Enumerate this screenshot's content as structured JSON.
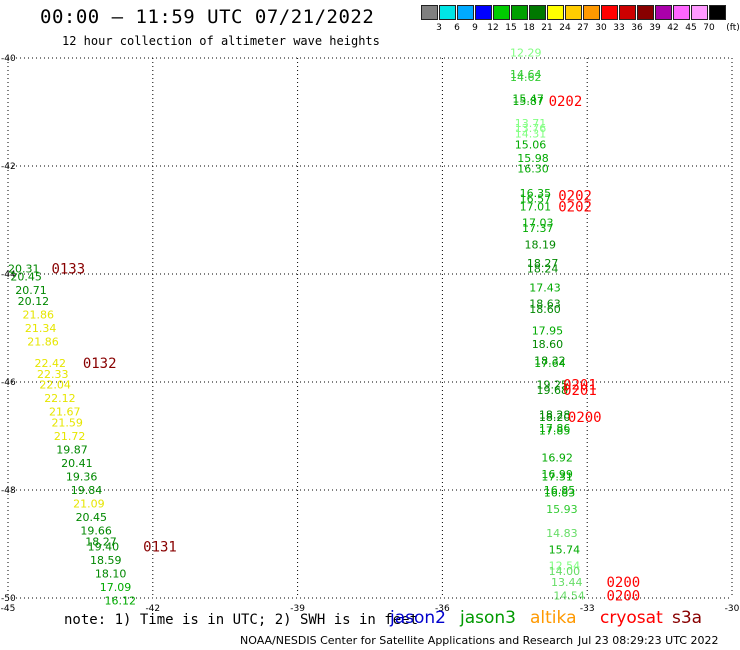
{
  "header": {
    "title": "00:00 – 11:59 UTC 07/21/2022",
    "subtitle": "12 hour collection of altimeter wave heights"
  },
  "color_scale": {
    "swatches": [
      "#808080",
      "#00e5e5",
      "#00aaff",
      "#0000ff",
      "#00cc00",
      "#00a000",
      "#007800",
      "#ffff00",
      "#ffcc00",
      "#ff9900",
      "#ff0000",
      "#cc0000",
      "#880000",
      "#aa00aa",
      "#ff66ff",
      "#ff99ff",
      "#000000"
    ],
    "labels": [
      "3",
      "6",
      "9",
      "12",
      "15",
      "18",
      "21",
      "24",
      "27",
      "30",
      "33",
      "36",
      "39",
      "42",
      "45",
      "70",
      "(ft)"
    ]
  },
  "map": {
    "lon_labels": [
      "-45",
      "-42",
      "-39",
      "-36",
      "-33",
      "-30"
    ],
    "lat_labels": [
      "-40",
      "-42",
      "-44",
      "-46",
      "-48",
      "-50"
    ],
    "obs": [
      {
        "v": "12.29",
        "c": "#80ff80",
        "lon": -34.6,
        "lat": -39.9
      },
      {
        "v": "14.64",
        "c": "#33cc33",
        "lon": -34.6,
        "lat": -40.3
      },
      {
        "v": "14.62",
        "c": "#33cc33",
        "lon": -34.6,
        "lat": -40.35
      },
      {
        "v": "15.47",
        "c": "#00aa00",
        "lon": -34.55,
        "lat": -40.75
      },
      {
        "v": "15.87",
        "c": "#00aa00",
        "lon": -34.55,
        "lat": -40.8
      },
      {
        "v": "13.71",
        "c": "#80ff80",
        "lon": -34.5,
        "lat": -41.2
      },
      {
        "v": "13.76",
        "c": "#80ff80",
        "lon": -34.5,
        "lat": -41.3
      },
      {
        "v": "14.31",
        "c": "#80ff80",
        "lon": -34.5,
        "lat": -41.4
      },
      {
        "v": "15.06",
        "c": "#00aa00",
        "lon": -34.5,
        "lat": -41.6
      },
      {
        "v": "15.98",
        "c": "#00aa00",
        "lon": -34.45,
        "lat": -41.85
      },
      {
        "v": "16.30",
        "c": "#00aa00",
        "lon": -34.45,
        "lat": -42.05
      },
      {
        "v": "16.35",
        "c": "#00aa00",
        "lon": -34.4,
        "lat": -42.5
      },
      {
        "v": "16.57",
        "c": "#00aa00",
        "lon": -34.4,
        "lat": -42.6
      },
      {
        "v": "17.01",
        "c": "#00aa00",
        "lon": -34.4,
        "lat": -42.75
      },
      {
        "v": "17.03",
        "c": "#00aa00",
        "lon": -34.35,
        "lat": -43.05
      },
      {
        "v": "17.37",
        "c": "#00aa00",
        "lon": -34.35,
        "lat": -43.15
      },
      {
        "v": "18.19",
        "c": "#008800",
        "lon": -34.3,
        "lat": -43.45
      },
      {
        "v": "18.27",
        "c": "#008800",
        "lon": -34.25,
        "lat": -43.8
      },
      {
        "v": "18.24",
        "c": "#008800",
        "lon": -34.25,
        "lat": -43.9
      },
      {
        "v": "17.43",
        "c": "#00aa00",
        "lon": -34.2,
        "lat": -44.25
      },
      {
        "v": "18.63",
        "c": "#008800",
        "lon": -34.2,
        "lat": -44.55
      },
      {
        "v": "18.60",
        "c": "#008800",
        "lon": -34.2,
        "lat": -44.65
      },
      {
        "v": "17.95",
        "c": "#00aa00",
        "lon": -34.15,
        "lat": -45.05
      },
      {
        "v": "18.60",
        "c": "#008800",
        "lon": -34.15,
        "lat": -45.3
      },
      {
        "v": "18.32",
        "c": "#008800",
        "lon": -34.1,
        "lat": -45.6
      },
      {
        "v": "17.64",
        "c": "#00aa00",
        "lon": -34.1,
        "lat": -45.65
      },
      {
        "v": "19.25",
        "c": "#008800",
        "lon": -34.05,
        "lat": -46.05
      },
      {
        "v": "19.68",
        "c": "#008800",
        "lon": -34.05,
        "lat": -46.15
      },
      {
        "v": "18.28",
        "c": "#008800",
        "lon": -34.0,
        "lat": -46.6
      },
      {
        "v": "18.20",
        "c": "#008800",
        "lon": -34.0,
        "lat": -46.65
      },
      {
        "v": "17.86",
        "c": "#00aa00",
        "lon": -34.0,
        "lat": -46.85
      },
      {
        "v": "17.85",
        "c": "#00aa00",
        "lon": -34.0,
        "lat": -46.9
      },
      {
        "v": "16.92",
        "c": "#00aa00",
        "lon": -33.95,
        "lat": -47.4
      },
      {
        "v": "16.99",
        "c": "#00aa00",
        "lon": -33.95,
        "lat": -47.7
      },
      {
        "v": "17.31",
        "c": "#00aa00",
        "lon": -33.95,
        "lat": -47.75
      },
      {
        "v": "16.85",
        "c": "#00aa00",
        "lon": -33.9,
        "lat": -48.0
      },
      {
        "v": "16.83",
        "c": "#00aa00",
        "lon": -33.9,
        "lat": -48.05
      },
      {
        "v": "15.93",
        "c": "#33cc33",
        "lon": -33.85,
        "lat": -48.35
      },
      {
        "v": "14.83",
        "c": "#66dd66",
        "lon": -33.85,
        "lat": -48.8
      },
      {
        "v": "15.74",
        "c": "#00aa00",
        "lon": -33.8,
        "lat": -49.1
      },
      {
        "v": "12.54",
        "c": "#80ff80",
        "lon": -33.8,
        "lat": -49.4
      },
      {
        "v": "14.00",
        "c": "#66dd66",
        "lon": -33.8,
        "lat": -49.5
      },
      {
        "v": "13.44",
        "c": "#66dd66",
        "lon": -33.75,
        "lat": -49.7
      },
      {
        "v": "14.54",
        "c": "#66dd66",
        "lon": -33.7,
        "lat": -49.95
      },
      {
        "v": "20.31",
        "c": "#008800",
        "lon": -45.0,
        "lat": -43.9
      },
      {
        "v": "20.45",
        "c": "#008800",
        "lon": -44.95,
        "lat": -44.05
      },
      {
        "v": "20.71",
        "c": "#008800",
        "lon": -44.85,
        "lat": -44.3
      },
      {
        "v": "20.12",
        "c": "#008800",
        "lon": -44.8,
        "lat": -44.5
      },
      {
        "v": "21.86",
        "c": "#e6e600",
        "lon": -44.7,
        "lat": -44.75
      },
      {
        "v": "21.34",
        "c": "#e6e600",
        "lon": -44.65,
        "lat": -45.0
      },
      {
        "v": "21.86",
        "c": "#e6e600",
        "lon": -44.6,
        "lat": -45.25
      },
      {
        "v": "22.42",
        "c": "#e6e600",
        "lon": -44.45,
        "lat": -45.65
      },
      {
        "v": "22.33",
        "c": "#e6e600",
        "lon": -44.4,
        "lat": -45.85
      },
      {
        "v": "22.04",
        "c": "#e6e600",
        "lon": -44.35,
        "lat": -46.05
      },
      {
        "v": "22.12",
        "c": "#e6e600",
        "lon": -44.25,
        "lat": -46.3
      },
      {
        "v": "21.67",
        "c": "#e6e600",
        "lon": -44.15,
        "lat": -46.55
      },
      {
        "v": "21.59",
        "c": "#e6e600",
        "lon": -44.1,
        "lat": -46.75
      },
      {
        "v": "21.72",
        "c": "#e6e600",
        "lon": -44.05,
        "lat": -47.0
      },
      {
        "v": "19.87",
        "c": "#008800",
        "lon": -44.0,
        "lat": -47.25
      },
      {
        "v": "20.41",
        "c": "#008800",
        "lon": -43.9,
        "lat": -47.5
      },
      {
        "v": "19.36",
        "c": "#008800",
        "lon": -43.8,
        "lat": -47.75
      },
      {
        "v": "19.84",
        "c": "#008800",
        "lon": -43.7,
        "lat": -48.0
      },
      {
        "v": "21.09",
        "c": "#e6e600",
        "lon": -43.65,
        "lat": -48.25
      },
      {
        "v": "20.45",
        "c": "#008800",
        "lon": -43.6,
        "lat": -48.5
      },
      {
        "v": "19.66",
        "c": "#008800",
        "lon": -43.5,
        "lat": -48.75
      },
      {
        "v": "18.27",
        "c": "#008800",
        "lon": -43.4,
        "lat": -48.95
      },
      {
        "v": "19.40",
        "c": "#008800",
        "lon": -43.35,
        "lat": -49.05
      },
      {
        "v": "18.59",
        "c": "#008800",
        "lon": -43.3,
        "lat": -49.3
      },
      {
        "v": "18.10",
        "c": "#008800",
        "lon": -43.2,
        "lat": -49.55
      },
      {
        "v": "17.09",
        "c": "#00aa00",
        "lon": -43.1,
        "lat": -49.8
      },
      {
        "v": "16.12",
        "c": "#00aa00",
        "lon": -43.0,
        "lat": -50.05
      }
    ],
    "time_labels": [
      {
        "t": "0202",
        "c": "#ff0000",
        "lon": -33.8,
        "lat": -40.8
      },
      {
        "t": "0202",
        "c": "#ff0000",
        "lon": -33.6,
        "lat": -42.55
      },
      {
        "t": "0202",
        "c": "#ff0000",
        "lon": -33.6,
        "lat": -42.75
      },
      {
        "t": "0201",
        "c": "#ff0000",
        "lon": -33.5,
        "lat": -46.05
      },
      {
        "t": "0201",
        "c": "#ff0000",
        "lon": -33.5,
        "lat": -46.15
      },
      {
        "t": "0200",
        "c": "#ff0000",
        "lon": -33.4,
        "lat": -46.65
      },
      {
        "t": "0200",
        "c": "#ff0000",
        "lon": -32.6,
        "lat": -49.7
      },
      {
        "t": "0200",
        "c": "#ff0000",
        "lon": -32.6,
        "lat": -49.95
      },
      {
        "t": "0133",
        "c": "#880000",
        "lon": -44.1,
        "lat": -43.9
      },
      {
        "t": "0132",
        "c": "#880000",
        "lon": -43.45,
        "lat": -45.65
      },
      {
        "t": "0131",
        "c": "#880000",
        "lon": -42.2,
        "lat": -49.05
      }
    ]
  },
  "footer": {
    "note": "note: 1) Time is in UTC; 2) SWH is in feet",
    "satellites": [
      {
        "name": "jason2",
        "color": "#0000cc"
      },
      {
        "name": "jason3",
        "color": "#009900"
      },
      {
        "name": "altika",
        "color": "#ff9900"
      },
      {
        "name": "cryosat",
        "color": "#ff0000"
      },
      {
        "name": "s3a",
        "color": "#880000"
      }
    ],
    "credit": "NOAA/NESDIS Center for Satellite Applications and Research",
    "timestamp": "Jul 23 08:29:23 UTC 2022"
  }
}
